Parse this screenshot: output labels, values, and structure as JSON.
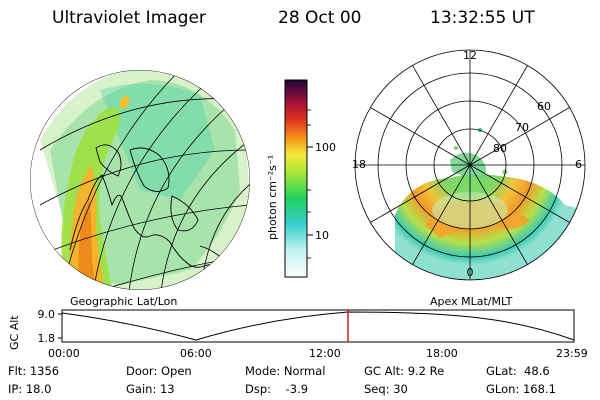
{
  "header": {
    "instrument": "Ultraviolet Imager",
    "date": "28 Oct 00",
    "time": "13:32:55 UT"
  },
  "panels": {
    "left_caption": "Geographic Lat/Lon",
    "right_caption": "Apex MLat/MLT"
  },
  "colorbar": {
    "unit_label": "photon cm⁻²s⁻¹",
    "ticks": [
      "100",
      "10"
    ]
  },
  "polar": {
    "mlt_labels": [
      "12",
      "18",
      "6",
      "0"
    ],
    "lat_labels": [
      "60",
      "70",
      "80"
    ]
  },
  "altitude": {
    "axis_label": "GC Alt",
    "ticks": [
      "9.0",
      "1.8"
    ],
    "time_ticks": [
      "00:00",
      "06:00",
      "12:00",
      "18:00",
      "23:59"
    ]
  },
  "info": {
    "flt": "Flt: 1356",
    "ip": "IP: 18.0",
    "door": "Door: Open",
    "gain": "Gain: 13",
    "mode": "Mode: Normal",
    "dsp": "Dsp:    -3.9",
    "gcalt": "GC Alt: 9.2 Re",
    "seq": "Seq: 30",
    "glat": "GLat:  48.6",
    "glon": "GLon: 168.1"
  }
}
